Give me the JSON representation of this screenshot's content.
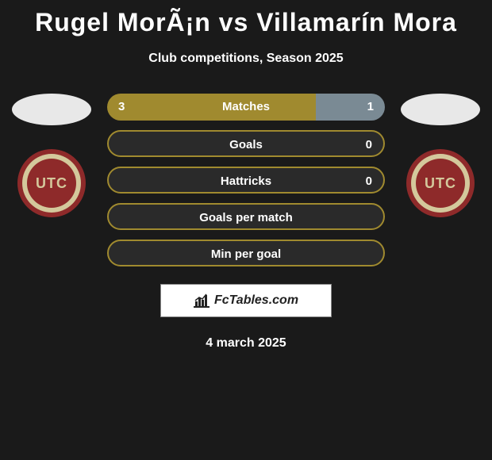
{
  "title": "Rugel MorÃ¡n vs Villamarín Mora",
  "subtitle": "Club competitions, Season 2025",
  "date": "4 march 2025",
  "logo_text": "FcTables.com",
  "badge_text": "UTC",
  "colors": {
    "bar_left": "#a08a2f",
    "bar_right": "#7a8a94",
    "bar_empty": "#2a2a2a",
    "background": "#1a1a1a",
    "badge_outer": "#8e2a2a",
    "badge_ring": "#d4c89c"
  },
  "bars": [
    {
      "label": "Matches",
      "left_val": "3",
      "right_val": "1",
      "left_pct": 75,
      "right_pct": 25,
      "show_vals": true
    },
    {
      "label": "Goals",
      "left_val": "",
      "right_val": "0",
      "left_pct": 0,
      "right_pct": 0,
      "show_vals": true
    },
    {
      "label": "Hattricks",
      "left_val": "",
      "right_val": "0",
      "left_pct": 0,
      "right_pct": 0,
      "show_vals": true
    },
    {
      "label": "Goals per match",
      "left_val": "",
      "right_val": "",
      "left_pct": 0,
      "right_pct": 0,
      "show_vals": false
    },
    {
      "label": "Min per goal",
      "left_val": "",
      "right_val": "",
      "left_pct": 0,
      "right_pct": 0,
      "show_vals": false
    }
  ]
}
